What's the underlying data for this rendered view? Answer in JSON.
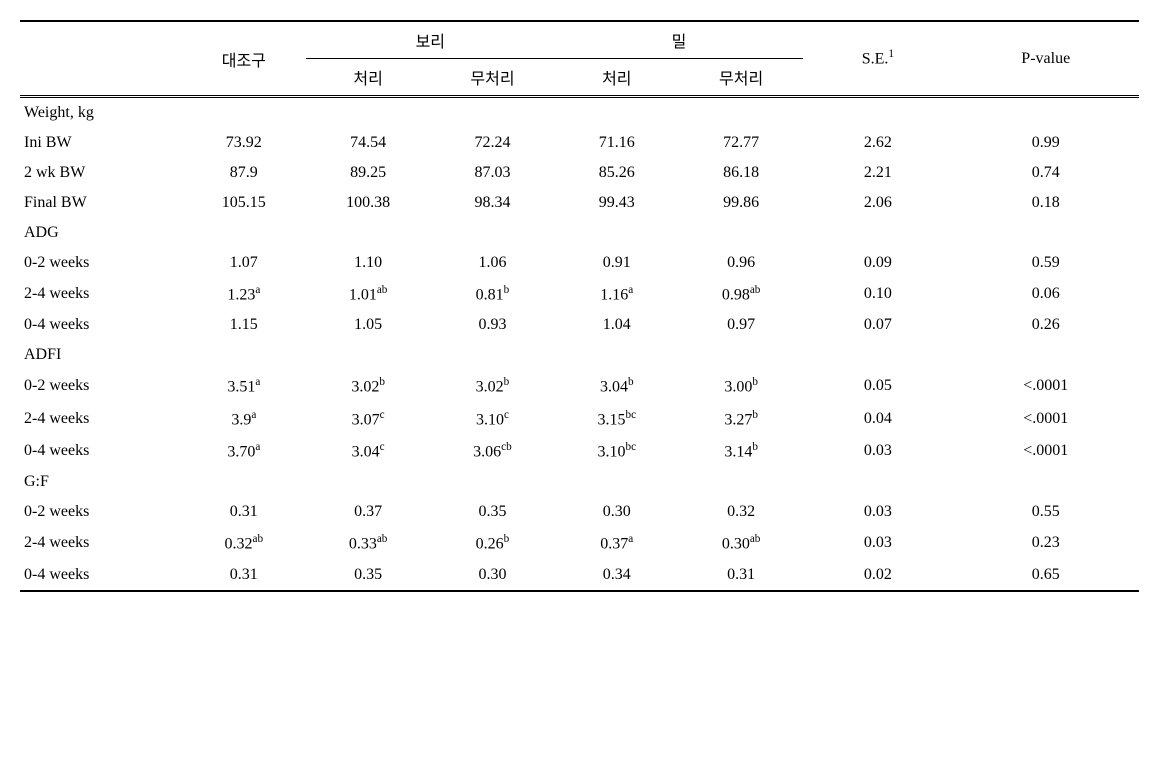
{
  "headers": {
    "col1": "",
    "control": "대조구",
    "barley": "보리",
    "wheat": "밀",
    "se": "S.E.",
    "se_sup": "1",
    "pvalue": "P-value",
    "treated": "처리",
    "untreated": "무처리"
  },
  "sections": [
    {
      "label": "Weight, kg",
      "rows": [
        {
          "label": "Ini BW",
          "control": {
            "val": "73.92",
            "sup": ""
          },
          "barley_t": {
            "val": "74.54",
            "sup": ""
          },
          "barley_u": {
            "val": "72.24",
            "sup": ""
          },
          "wheat_t": {
            "val": "71.16",
            "sup": ""
          },
          "wheat_u": {
            "val": "72.77",
            "sup": ""
          },
          "se": "2.62",
          "p": "0.99"
        },
        {
          "label": "2 wk BW",
          "control": {
            "val": "87.9",
            "sup": ""
          },
          "barley_t": {
            "val": "89.25",
            "sup": ""
          },
          "barley_u": {
            "val": "87.03",
            "sup": ""
          },
          "wheat_t": {
            "val": "85.26",
            "sup": ""
          },
          "wheat_u": {
            "val": "86.18",
            "sup": ""
          },
          "se": "2.21",
          "p": "0.74"
        },
        {
          "label": "Final BW",
          "control": {
            "val": "105.15",
            "sup": ""
          },
          "barley_t": {
            "val": "100.38",
            "sup": ""
          },
          "barley_u": {
            "val": "98.34",
            "sup": ""
          },
          "wheat_t": {
            "val": "99.43",
            "sup": ""
          },
          "wheat_u": {
            "val": "99.86",
            "sup": ""
          },
          "se": "2.06",
          "p": "0.18"
        }
      ]
    },
    {
      "label": "ADG",
      "rows": [
        {
          "label": "0-2 weeks",
          "control": {
            "val": "1.07",
            "sup": ""
          },
          "barley_t": {
            "val": "1.10",
            "sup": ""
          },
          "barley_u": {
            "val": "1.06",
            "sup": ""
          },
          "wheat_t": {
            "val": "0.91",
            "sup": ""
          },
          "wheat_u": {
            "val": "0.96",
            "sup": ""
          },
          "se": "0.09",
          "p": "0.59"
        },
        {
          "label": "2-4 weeks",
          "control": {
            "val": "1.23",
            "sup": "a"
          },
          "barley_t": {
            "val": "1.01",
            "sup": "ab"
          },
          "barley_u": {
            "val": "0.81",
            "sup": "b"
          },
          "wheat_t": {
            "val": "1.16",
            "sup": "a"
          },
          "wheat_u": {
            "val": "0.98",
            "sup": "ab"
          },
          "se": "0.10",
          "p": "0.06"
        },
        {
          "label": "0-4 weeks",
          "control": {
            "val": "1.15",
            "sup": ""
          },
          "barley_t": {
            "val": "1.05",
            "sup": ""
          },
          "barley_u": {
            "val": "0.93",
            "sup": ""
          },
          "wheat_t": {
            "val": "1.04",
            "sup": ""
          },
          "wheat_u": {
            "val": "0.97",
            "sup": ""
          },
          "se": "0.07",
          "p": "0.26"
        }
      ]
    },
    {
      "label": "ADFI",
      "rows": [
        {
          "label": "0-2 weeks",
          "control": {
            "val": "3.51",
            "sup": "a"
          },
          "barley_t": {
            "val": "3.02",
            "sup": "b"
          },
          "barley_u": {
            "val": "3.02",
            "sup": "b"
          },
          "wheat_t": {
            "val": "3.04",
            "sup": "b"
          },
          "wheat_u": {
            "val": "3.00",
            "sup": "b"
          },
          "se": "0.05",
          "p": "<.0001"
        },
        {
          "label": "2-4 weeks",
          "control": {
            "val": "3.9",
            "sup": "a"
          },
          "barley_t": {
            "val": "3.07",
            "sup": "c"
          },
          "barley_u": {
            "val": "3.10",
            "sup": "c"
          },
          "wheat_t": {
            "val": "3.15",
            "sup": "bc"
          },
          "wheat_u": {
            "val": "3.27",
            "sup": "b"
          },
          "se": "0.04",
          "p": "<.0001"
        },
        {
          "label": "0-4 weeks",
          "control": {
            "val": "3.70",
            "sup": "a"
          },
          "barley_t": {
            "val": "3.04",
            "sup": "c"
          },
          "barley_u": {
            "val": "3.06",
            "sup": "cb"
          },
          "wheat_t": {
            "val": "3.10",
            "sup": "bc"
          },
          "wheat_u": {
            "val": "3.14",
            "sup": "b"
          },
          "se": "0.03",
          "p": "<.0001"
        }
      ]
    },
    {
      "label": "G:F",
      "rows": [
        {
          "label": "0-2 weeks",
          "control": {
            "val": "0.31",
            "sup": ""
          },
          "barley_t": {
            "val": "0.37",
            "sup": ""
          },
          "barley_u": {
            "val": "0.35",
            "sup": ""
          },
          "wheat_t": {
            "val": "0.30",
            "sup": ""
          },
          "wheat_u": {
            "val": "0.32",
            "sup": ""
          },
          "se": "0.03",
          "p": "0.55"
        },
        {
          "label": "2-4 weeks",
          "control": {
            "val": "0.32",
            "sup": "ab"
          },
          "barley_t": {
            "val": "0.33",
            "sup": "ab"
          },
          "barley_u": {
            "val": "0.26",
            "sup": "b"
          },
          "wheat_t": {
            "val": "0.37",
            "sup": "a"
          },
          "wheat_u": {
            "val": "0.30",
            "sup": "ab"
          },
          "se": "0.03",
          "p": "0.23"
        },
        {
          "label": "0-4 weeks",
          "control": {
            "val": "0.31",
            "sup": ""
          },
          "barley_t": {
            "val": "0.35",
            "sup": ""
          },
          "barley_u": {
            "val": "0.30",
            "sup": ""
          },
          "wheat_t": {
            "val": "0.34",
            "sup": ""
          },
          "wheat_u": {
            "val": "0.31",
            "sup": ""
          },
          "se": "0.02",
          "p": "0.65"
        }
      ]
    }
  ]
}
